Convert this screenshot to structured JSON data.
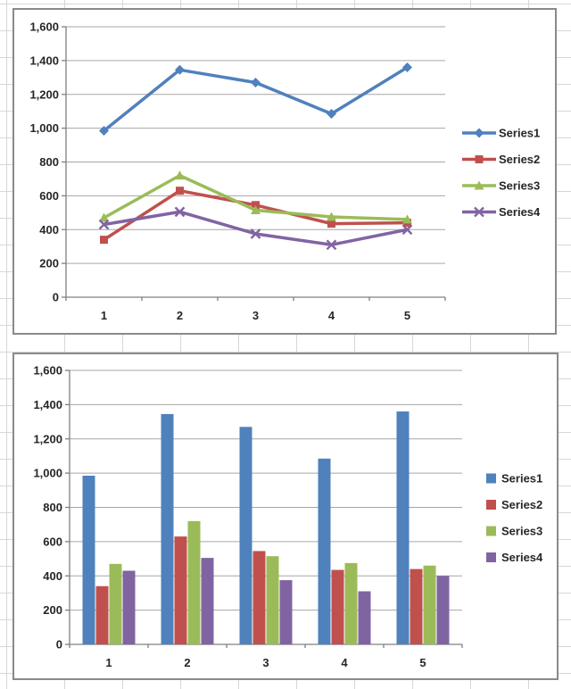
{
  "sheet": {
    "description": "Excel worksheet background with two embedded charts",
    "gridline_color": "#d7d7d7"
  },
  "styles": {
    "plot_grid_color": "#a6a6a6",
    "axis_color": "#808080",
    "label_color": "#262626",
    "chart_border_color": "#8a8a8a",
    "chart_background": "#ffffff"
  },
  "chart_data": [
    {
      "type": "line",
      "title": "",
      "categories": [
        "1",
        "2",
        "3",
        "4",
        "5"
      ],
      "series": [
        {
          "name": "Series1",
          "color": "#4F81BD",
          "marker": "diamond",
          "values": [
            985,
            1345,
            1270,
            1085,
            1360
          ]
        },
        {
          "name": "Series2",
          "color": "#C0504D",
          "marker": "square",
          "values": [
            340,
            630,
            545,
            435,
            440
          ]
        },
        {
          "name": "Series3",
          "color": "#9BBB59",
          "marker": "triangle",
          "values": [
            470,
            720,
            515,
            475,
            460
          ]
        },
        {
          "name": "Series4",
          "color": "#8064A2",
          "marker": "x",
          "values": [
            430,
            505,
            375,
            310,
            400
          ]
        }
      ],
      "ylim": [
        0,
        1600
      ],
      "ytick_interval": 200,
      "ytick_labels": [
        "0",
        "200",
        "400",
        "600",
        "800",
        "1,000",
        "1,200",
        "1,400",
        "1,600"
      ],
      "grid": true,
      "legend_position": "right",
      "legend_entries": [
        "Series1",
        "Series2",
        "Series3",
        "Series4"
      ]
    },
    {
      "type": "bar",
      "title": "",
      "categories": [
        "1",
        "2",
        "3",
        "4",
        "5"
      ],
      "series": [
        {
          "name": "Series1",
          "color": "#4F81BD",
          "values": [
            985,
            1345,
            1270,
            1085,
            1360
          ]
        },
        {
          "name": "Series2",
          "color": "#C0504D",
          "values": [
            340,
            630,
            545,
            435,
            440
          ]
        },
        {
          "name": "Series3",
          "color": "#9BBB59",
          "values": [
            470,
            720,
            515,
            475,
            460
          ]
        },
        {
          "name": "Series4",
          "color": "#8064A2",
          "values": [
            430,
            505,
            375,
            310,
            400
          ]
        }
      ],
      "ylim": [
        0,
        1600
      ],
      "ytick_interval": 200,
      "ytick_labels": [
        "0",
        "200",
        "400",
        "600",
        "800",
        "1,000",
        "1,200",
        "1,400",
        "1,600"
      ],
      "grid": true,
      "legend_position": "right",
      "legend_entries": [
        "Series1",
        "Series2",
        "Series3",
        "Series4"
      ]
    }
  ]
}
